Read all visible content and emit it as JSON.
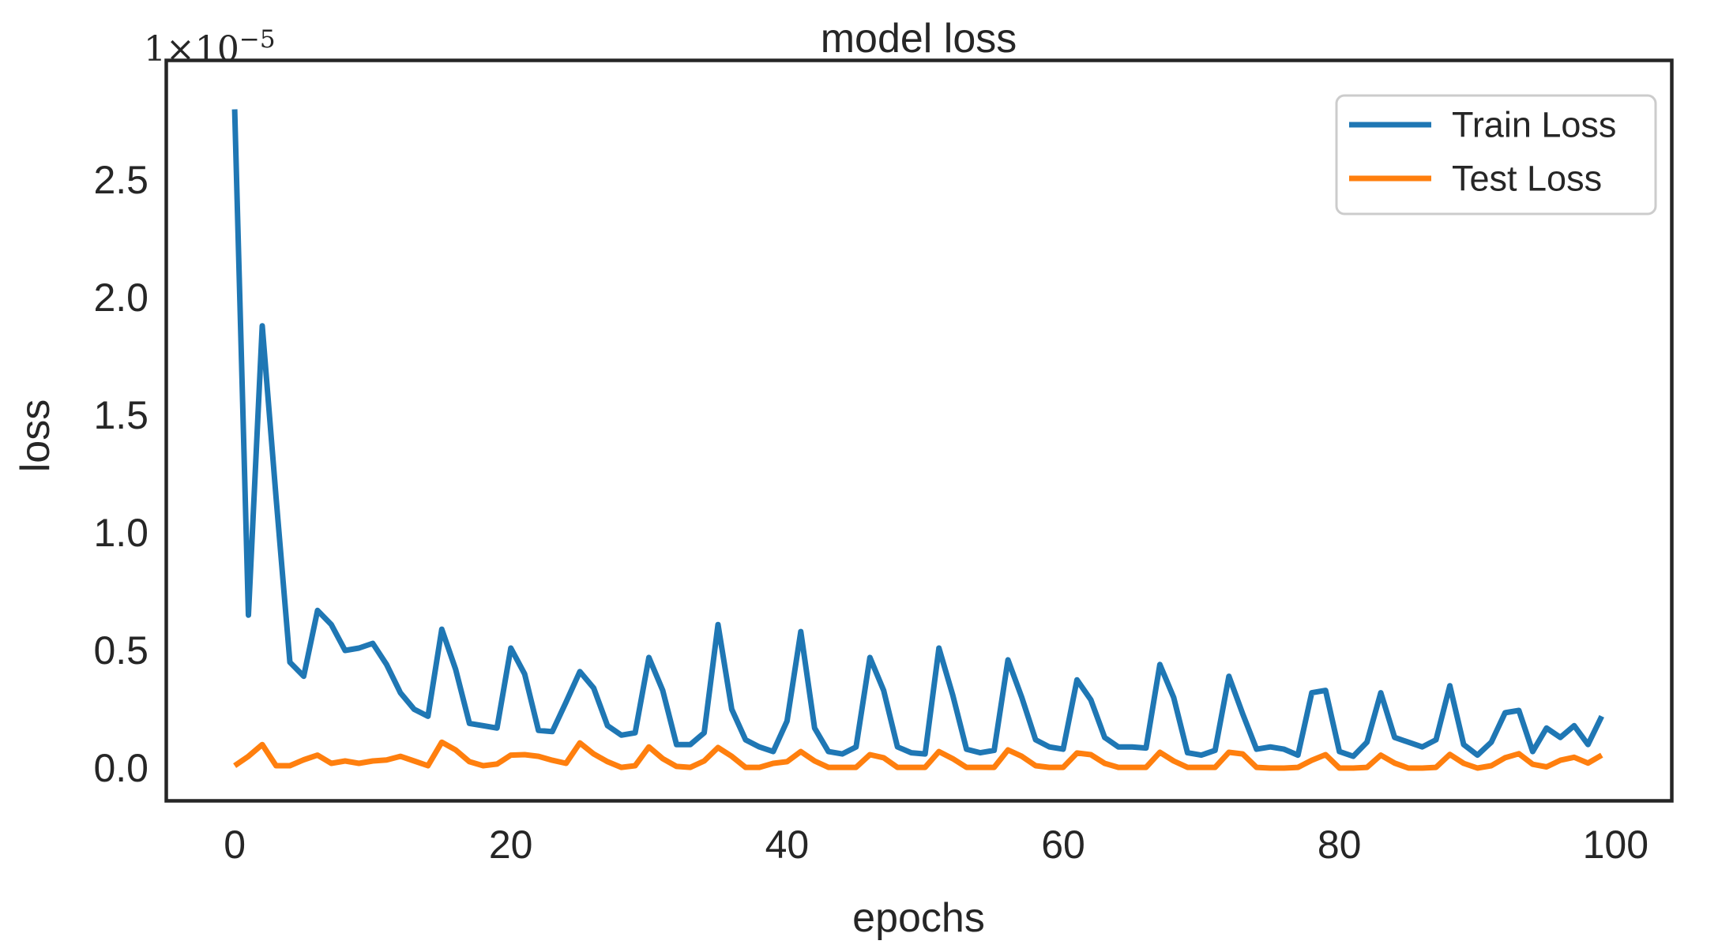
{
  "chart_data": {
    "type": "line",
    "title": "model loss",
    "xlabel": "epochs",
    "ylabel": "loss",
    "y_axis_offset_text": {
      "base": "1×10",
      "exponent": "−5"
    },
    "unit_scale": "1e-5",
    "x_start": 0,
    "x_step": 1,
    "n_points": 100,
    "xlim": [
      -4.98,
      104.1
    ],
    "ylim": [
      -0.141,
      3.013
    ],
    "xticks": [
      0,
      20,
      40,
      60,
      80,
      100
    ],
    "yticks": [
      "0.0",
      "0.5",
      "1.0",
      "1.5",
      "2.0",
      "2.5"
    ],
    "grid": false,
    "legend_position": "upper right",
    "frame_color": "#262626",
    "series": [
      {
        "name": "Train Loss",
        "color": "#1f77b4",
        "values": [
          2.8,
          0.65,
          1.88,
          1.15,
          0.45,
          0.39,
          0.67,
          0.61,
          0.5,
          0.51,
          0.53,
          0.44,
          0.32,
          0.25,
          0.22,
          0.59,
          0.42,
          0.19,
          0.18,
          0.17,
          0.51,
          0.4,
          0.16,
          0.155,
          0.28,
          0.41,
          0.34,
          0.18,
          0.14,
          0.15,
          0.47,
          0.33,
          0.1,
          0.1,
          0.15,
          0.61,
          0.25,
          0.12,
          0.09,
          0.07,
          0.2,
          0.58,
          0.17,
          0.07,
          0.06,
          0.09,
          0.47,
          0.33,
          0.09,
          0.065,
          0.06,
          0.51,
          0.31,
          0.08,
          0.065,
          0.075,
          0.46,
          0.3,
          0.12,
          0.09,
          0.08,
          0.375,
          0.29,
          0.13,
          0.09,
          0.09,
          0.085,
          0.44,
          0.3,
          0.065,
          0.055,
          0.075,
          0.39,
          0.23,
          0.08,
          0.09,
          0.08,
          0.055,
          0.32,
          0.33,
          0.07,
          0.05,
          0.11,
          0.32,
          0.13,
          0.11,
          0.09,
          0.12,
          0.35,
          0.1,
          0.055,
          0.11,
          0.235,
          0.245,
          0.07,
          0.17,
          0.13,
          0.18,
          0.1,
          0.22
        ]
      },
      {
        "name": "Test Loss",
        "color": "#ff7f0e",
        "values": [
          0.01,
          0.05,
          0.1,
          0.01,
          0.01,
          0.035,
          0.055,
          0.02,
          0.03,
          0.02,
          0.03,
          0.034,
          0.05,
          0.03,
          0.01,
          0.11,
          0.077,
          0.027,
          0.01,
          0.017,
          0.055,
          0.057,
          0.05,
          0.033,
          0.02,
          0.107,
          0.06,
          0.027,
          0.003,
          0.01,
          0.09,
          0.04,
          0.007,
          0.003,
          0.03,
          0.087,
          0.05,
          0.003,
          0.003,
          0.02,
          0.027,
          0.07,
          0.03,
          0.003,
          0.003,
          0.003,
          0.057,
          0.044,
          0.003,
          0.003,
          0.003,
          0.07,
          0.04,
          0.003,
          0.003,
          0.003,
          0.077,
          0.05,
          0.01,
          0.003,
          0.003,
          0.064,
          0.057,
          0.02,
          0.003,
          0.003,
          0.003,
          0.067,
          0.03,
          0.003,
          0.003,
          0.003,
          0.067,
          0.06,
          0.003,
          0.0,
          0.0,
          0.003,
          0.033,
          0.057,
          0.0,
          0.0,
          0.003,
          0.055,
          0.021,
          0.0,
          0.0,
          0.003,
          0.058,
          0.02,
          0.0,
          0.01,
          0.044,
          0.061,
          0.016,
          0.005,
          0.033,
          0.046,
          0.021,
          0.055
        ]
      }
    ]
  }
}
